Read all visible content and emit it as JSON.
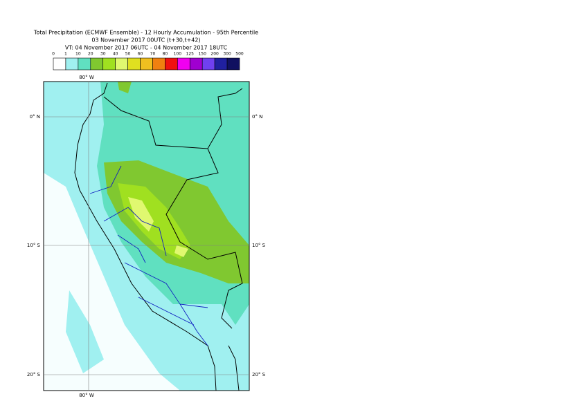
{
  "title": {
    "line1": "Total Precipitation (ECMWF Ensemble) - 12 Hourly Accumulation - 95th Percentile",
    "line2": "03 November 2017 00UTC (t+30,t+42)",
    "line3": "VT: 04 November 2017 06UTC - 04 November 2017 18UTC"
  },
  "legend": {
    "thresholds": [
      0,
      1,
      10,
      20,
      30,
      40,
      50,
      60,
      70,
      80,
      100,
      125,
      150,
      200,
      300,
      500
    ],
    "colors": [
      "#ffffff",
      "#a0f0f0",
      "#60e0c0",
      "#80c830",
      "#a0e020",
      "#e0f870",
      "#e0e020",
      "#f0c020",
      "#f08010",
      "#f01010",
      "#f000f0",
      "#a000d0",
      "#7040f0",
      "#2020a0",
      "#101060"
    ]
  },
  "map": {
    "lon_label": "80° W",
    "lat_labels": [
      "0° N",
      "10° S",
      "20° S"
    ]
  }
}
